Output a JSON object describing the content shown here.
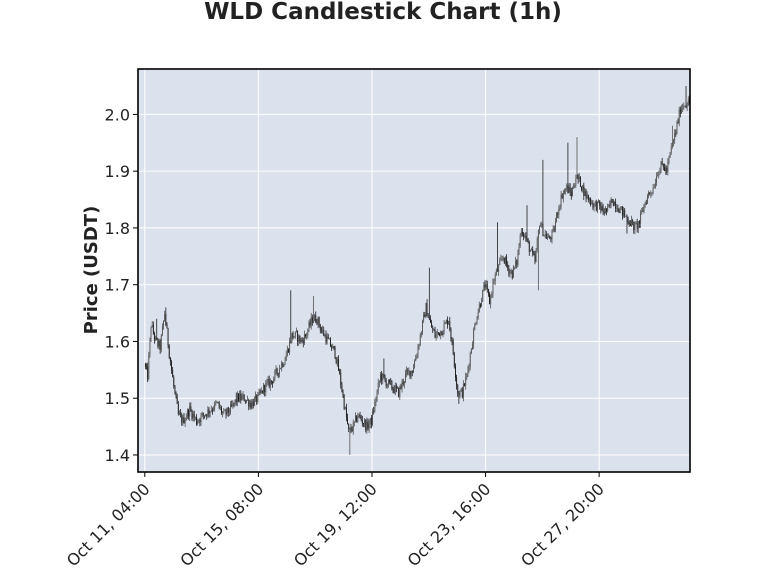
{
  "chart_data": {
    "type": "candlestick",
    "title": "WLD Candlestick Chart (1h)",
    "xlabel": "",
    "ylabel": "Price (USDT)",
    "ylim": [
      1.37,
      2.08
    ],
    "yticks": [
      1.4,
      1.5,
      1.6,
      1.7,
      1.8,
      1.9,
      2.0
    ],
    "yticklabels": [
      "1.4",
      "1.5",
      "1.6",
      "1.7",
      "1.8",
      "1.9",
      "2.0"
    ],
    "xlim_hours": [
      -6,
      480
    ],
    "xticks_hours": [
      0,
      100,
      200,
      300,
      400
    ],
    "xticklabels": [
      "Oct 11, 04:00",
      "Oct 15, 08:00",
      "Oct 19, 12:00",
      "Oct 23, 16:00",
      "Oct 27, 20:00"
    ],
    "grid": true,
    "colors": {
      "plot_bg": "#dce1ee",
      "grid": "#ffffff",
      "candle": "#3a3a3a",
      "text": "#222222"
    },
    "price_path": [
      [
        0,
        1.56
      ],
      [
        3,
        1.54
      ],
      [
        6,
        1.63
      ],
      [
        10,
        1.6
      ],
      [
        14,
        1.59
      ],
      [
        18,
        1.65
      ],
      [
        22,
        1.58
      ],
      [
        26,
        1.52
      ],
      [
        30,
        1.47
      ],
      [
        34,
        1.46
      ],
      [
        40,
        1.48
      ],
      [
        46,
        1.46
      ],
      [
        52,
        1.47
      ],
      [
        58,
        1.48
      ],
      [
        64,
        1.49
      ],
      [
        70,
        1.47
      ],
      [
        76,
        1.48
      ],
      [
        82,
        1.5
      ],
      [
        88,
        1.5
      ],
      [
        94,
        1.49
      ],
      [
        100,
        1.5
      ],
      [
        106,
        1.52
      ],
      [
        112,
        1.53
      ],
      [
        118,
        1.55
      ],
      [
        124,
        1.57
      ],
      [
        130,
        1.61
      ],
      [
        134,
        1.61
      ],
      [
        138,
        1.6
      ],
      [
        142,
        1.61
      ],
      [
        148,
        1.64
      ],
      [
        152,
        1.64
      ],
      [
        156,
        1.62
      ],
      [
        162,
        1.6
      ],
      [
        168,
        1.58
      ],
      [
        172,
        1.54
      ],
      [
        176,
        1.49
      ],
      [
        180,
        1.44
      ],
      [
        184,
        1.45
      ],
      [
        188,
        1.47
      ],
      [
        192,
        1.46
      ],
      [
        196,
        1.45
      ],
      [
        200,
        1.46
      ],
      [
        204,
        1.5
      ],
      [
        208,
        1.54
      ],
      [
        212,
        1.53
      ],
      [
        218,
        1.52
      ],
      [
        224,
        1.51
      ],
      [
        230,
        1.54
      ],
      [
        236,
        1.55
      ],
      [
        240,
        1.58
      ],
      [
        244,
        1.62
      ],
      [
        248,
        1.66
      ],
      [
        252,
        1.63
      ],
      [
        256,
        1.61
      ],
      [
        262,
        1.62
      ],
      [
        268,
        1.64
      ],
      [
        272,
        1.58
      ],
      [
        276,
        1.51
      ],
      [
        280,
        1.51
      ],
      [
        284,
        1.54
      ],
      [
        288,
        1.59
      ],
      [
        292,
        1.64
      ],
      [
        296,
        1.67
      ],
      [
        300,
        1.7
      ],
      [
        304,
        1.67
      ],
      [
        308,
        1.71
      ],
      [
        312,
        1.73
      ],
      [
        316,
        1.75
      ],
      [
        320,
        1.73
      ],
      [
        324,
        1.72
      ],
      [
        328,
        1.74
      ],
      [
        332,
        1.8
      ],
      [
        336,
        1.78
      ],
      [
        340,
        1.76
      ],
      [
        344,
        1.74
      ],
      [
        348,
        1.81
      ],
      [
        352,
        1.79
      ],
      [
        356,
        1.78
      ],
      [
        360,
        1.79
      ],
      [
        364,
        1.83
      ],
      [
        368,
        1.86
      ],
      [
        372,
        1.87
      ],
      [
        376,
        1.86
      ],
      [
        380,
        1.89
      ],
      [
        384,
        1.88
      ],
      [
        388,
        1.86
      ],
      [
        392,
        1.85
      ],
      [
        396,
        1.84
      ],
      [
        400,
        1.84
      ],
      [
        404,
        1.83
      ],
      [
        408,
        1.83
      ],
      [
        412,
        1.85
      ],
      [
        416,
        1.84
      ],
      [
        420,
        1.83
      ],
      [
        424,
        1.82
      ],
      [
        428,
        1.81
      ],
      [
        432,
        1.8
      ],
      [
        436,
        1.81
      ],
      [
        440,
        1.84
      ],
      [
        444,
        1.86
      ],
      [
        448,
        1.87
      ],
      [
        452,
        1.9
      ],
      [
        456,
        1.91
      ],
      [
        460,
        1.9
      ],
      [
        464,
        1.94
      ],
      [
        468,
        1.97
      ],
      [
        472,
        2.01
      ],
      [
        476,
        2.02
      ],
      [
        479,
        2.02
      ]
    ],
    "spikes": [
      [
        10,
        1.64
      ],
      [
        18,
        1.66
      ],
      [
        80,
        1.51
      ],
      [
        108,
        1.53
      ],
      [
        128,
        1.69
      ],
      [
        148,
        1.68
      ],
      [
        180,
        1.4
      ],
      [
        210,
        1.57
      ],
      [
        250,
        1.73
      ],
      [
        276,
        1.49
      ],
      [
        310,
        1.81
      ],
      [
        336,
        1.84
      ],
      [
        338,
        1.76
      ],
      [
        346,
        1.69
      ],
      [
        350,
        1.92
      ],
      [
        372,
        1.95
      ],
      [
        380,
        1.96
      ],
      [
        424,
        1.79
      ],
      [
        464,
        1.98
      ],
      [
        476,
        2.05
      ]
    ]
  }
}
